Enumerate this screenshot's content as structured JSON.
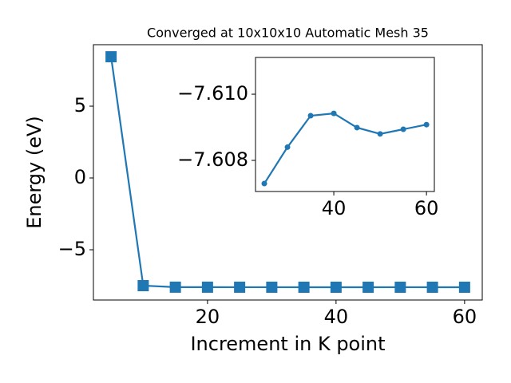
{
  "chart_data": [
    {
      "type": "line",
      "title": "Converged at 10x10x10 Automatic Mesh 35",
      "xlabel": "Increment in K point",
      "ylabel": "Energy (eV)",
      "x": [
        5,
        10,
        15,
        20,
        25,
        30,
        35,
        40,
        45,
        50,
        55,
        60
      ],
      "series": [
        {
          "color": "#1f77b4",
          "marker": "square",
          "values": [
            8.44,
            -7.5,
            -7.605,
            -7.606,
            -7.6073,
            -7.6084,
            -7.60935,
            -7.60942,
            -7.60899,
            -7.6088,
            -7.60894,
            -7.60908
          ]
        }
      ],
      "xlim": [
        2.25,
        62.75
      ],
      "ylim": [
        -8.5,
        9.28
      ],
      "xticks": [
        20,
        40,
        60
      ],
      "yticks": [
        {
          "value": -5,
          "label": "−5"
        },
        0,
        5
      ]
    },
    {
      "type": "line",
      "x": [
        25,
        30,
        35,
        40,
        45,
        50,
        55,
        60
      ],
      "series": [
        {
          "color": "#1f77b4",
          "marker": "circle",
          "values": [
            -7.6073,
            -7.6084,
            -7.60935,
            -7.60942,
            -7.60899,
            -7.6088,
            -7.60894,
            -7.60908
          ]
        }
      ],
      "xlim": [
        23.1,
        61.7
      ],
      "ylim": [
        -7.60706,
        -7.61111
      ],
      "xticks": [
        40,
        60
      ],
      "yticks": [
        {
          "value": -7.608,
          "label": "−7.608"
        },
        {
          "value": -7.61,
          "label": "−7.610"
        }
      ]
    }
  ]
}
